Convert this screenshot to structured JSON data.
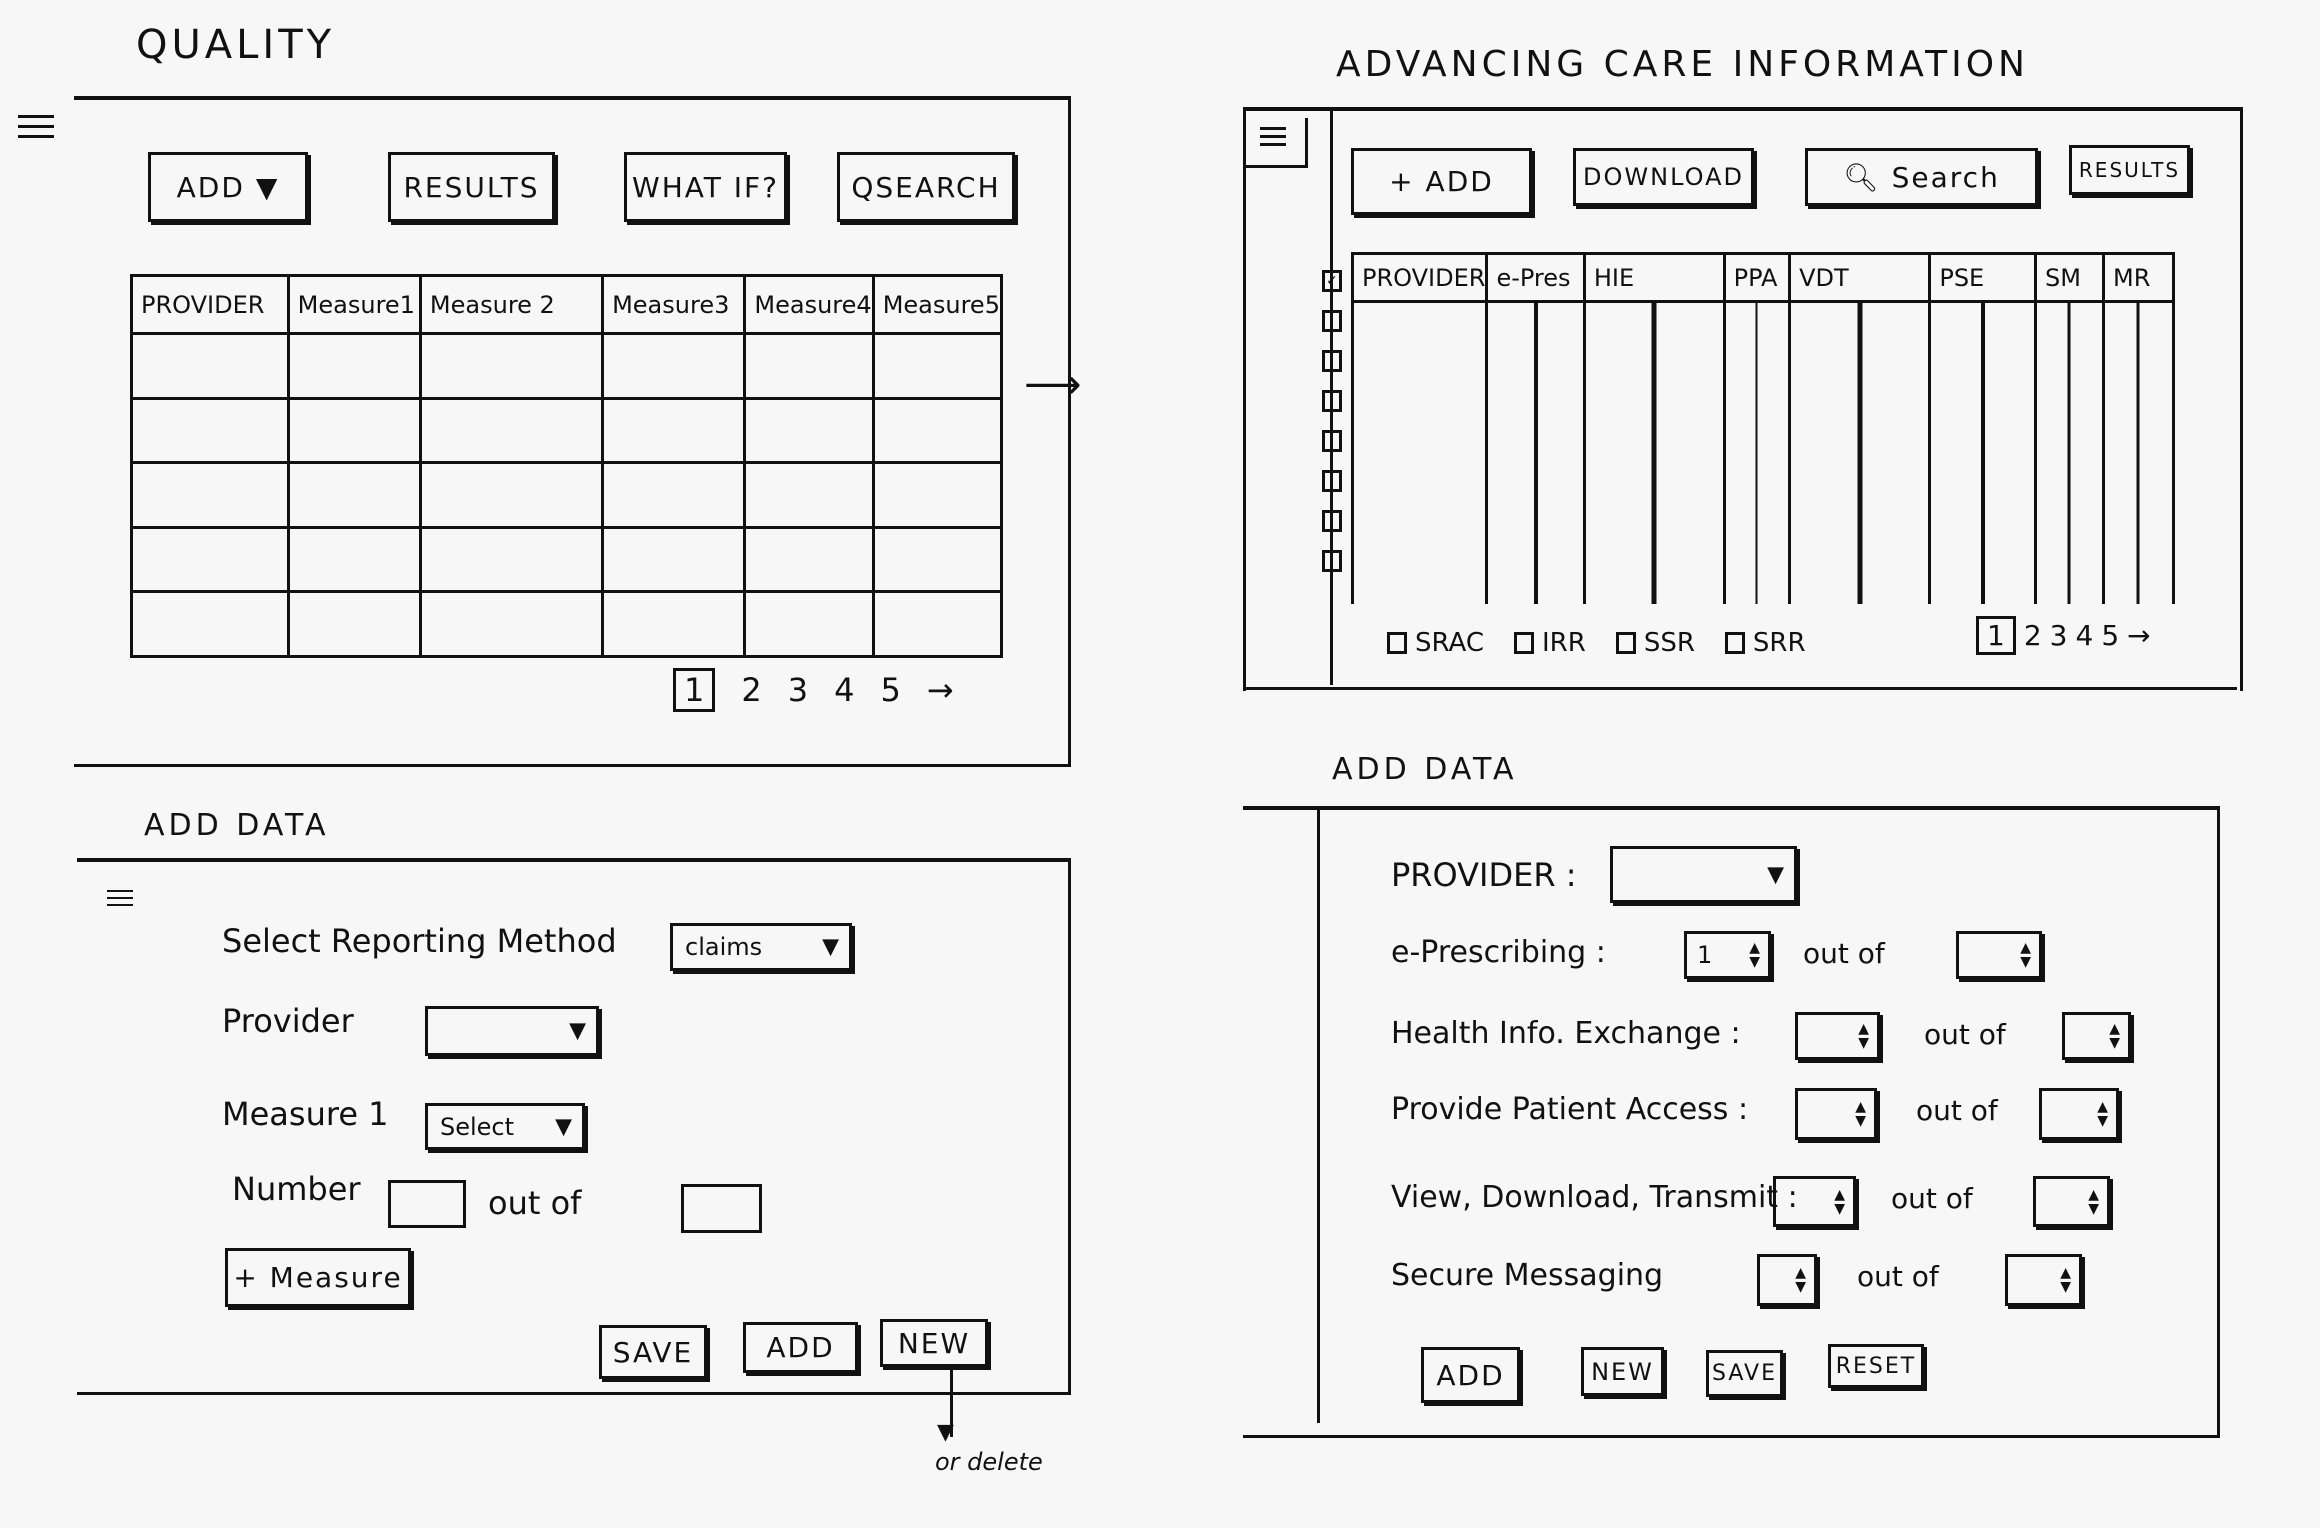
{
  "quality": {
    "title": "QUALITY",
    "toolbar": {
      "add": "ADD",
      "results": "RESULTS",
      "what_if": "WHAT IF?",
      "search": "SEARCH"
    },
    "table": {
      "columns": [
        "PROVIDER",
        "Measure1",
        "Measure 2",
        "Measure3",
        "Measure4",
        "Measure5"
      ],
      "row_count": 5
    },
    "pagination": {
      "pages": [
        "1",
        "2",
        "3",
        "4",
        "5"
      ],
      "current": "1",
      "next": "→"
    },
    "add_data": {
      "heading": "ADD DATA",
      "reporting_method_label": "Select Reporting Method",
      "reporting_method_value": "claims",
      "provider_label": "Provider",
      "provider_value": "",
      "measure_label": "Measure 1",
      "measure_value": "Select",
      "number_label": "Number",
      "out_of": "out of",
      "add_measure": "+ Measure",
      "save": "SAVE",
      "add": "ADD",
      "new": "NEW",
      "note": "or delete"
    }
  },
  "aci": {
    "title": "ADVANCING CARE INFORMATION",
    "toolbar": {
      "add": "+ ADD",
      "download": "DOWNLOAD",
      "search": "Search",
      "results": "RESULTS"
    },
    "table": {
      "columns": [
        "PROVIDER",
        "e-Pres",
        "HIE",
        "PPA",
        "VDT",
        "PSE",
        "SM",
        "MR"
      ],
      "row_count": 7,
      "select_all_checked": true
    },
    "filters": [
      "SRAC",
      "IRR",
      "SSR",
      "SRR"
    ],
    "pagination": {
      "pages": [
        "1",
        "2",
        "3",
        "4",
        "5"
      ],
      "current": "1",
      "next": "→"
    },
    "add_data": {
      "heading": "ADD DATA",
      "provider_label": "PROVIDER :",
      "out_of": "out of",
      "rows": [
        {
          "label": "e-Prescribing :",
          "value": "1",
          "total": ""
        },
        {
          "label": "Health Info. Exchange :",
          "value": "",
          "total": ""
        },
        {
          "label": "Provide Patient Access :",
          "value": "",
          "total": ""
        },
        {
          "label": "View, Download, Transmit :",
          "value": "",
          "total": ""
        },
        {
          "label": "Secure Messaging",
          "value": "",
          "total": ""
        }
      ],
      "add": "ADD",
      "new": "NEW",
      "save": "SAVE",
      "reset": "RESET"
    }
  },
  "icons": {
    "menu": "hamburger-icon",
    "dropdown": "triangle-down-icon",
    "search": "magnifier-icon",
    "stepper": "up-down-arrows-icon",
    "arrow": "right-arrow-icon"
  }
}
